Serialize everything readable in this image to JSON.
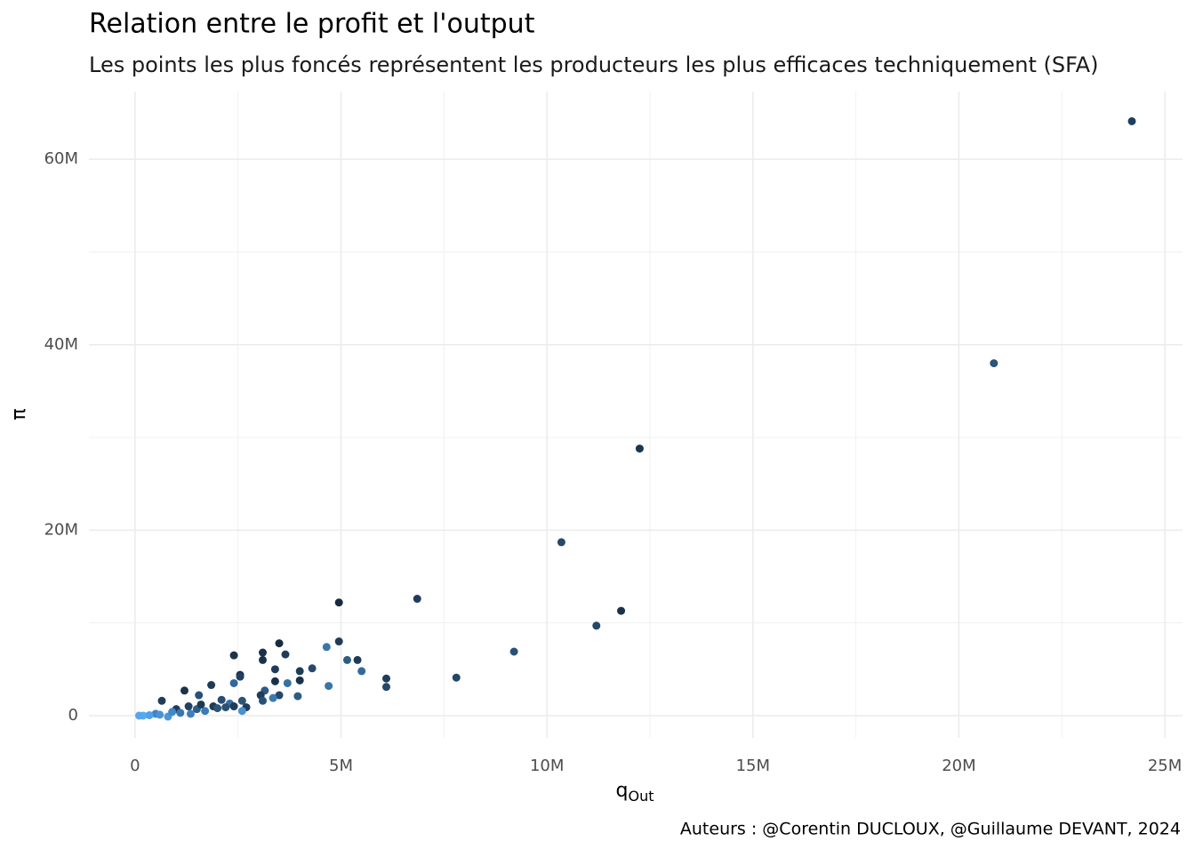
{
  "chart_data": {
    "type": "scatter",
    "title": "Relation entre le profit et l'output",
    "subtitle": "Les points les plus foncés représentent les producteurs les plus efficaces techniquement (SFA)",
    "x_label": "q",
    "x_label_sub": "Out",
    "y_label": "π",
    "caption": "Auteurs : @Corentin DUCLOUX, @Guillaume DEVANT, 2024",
    "xlim": [
      -1.12,
      25.43
    ],
    "ylim": [
      -2.4,
      67.3
    ],
    "xticks": [
      0,
      {
        "value": 5,
        "label": "5M"
      },
      {
        "value": 10,
        "label": "10M"
      },
      {
        "value": 15,
        "label": "15M"
      },
      {
        "value": 20,
        "label": "20M"
      },
      {
        "value": 25,
        "label": "25M"
      }
    ],
    "yticks": [
      0,
      {
        "value": 20,
        "label": "20M"
      },
      {
        "value": 40,
        "label": "40M"
      },
      {
        "value": 60,
        "label": "60M"
      }
    ],
    "grid": true,
    "x": [
      24.2,
      20.85,
      12.25,
      10.35,
      6.85,
      4.95,
      11.8,
      11.2,
      9.2,
      7.8,
      6.1,
      6.1,
      4.95,
      4.65,
      5.15,
      5.4,
      5.5,
      4.7,
      4.3,
      4.0,
      4.0,
      3.95,
      3.5,
      3.65,
      3.4,
      3.4,
      3.7,
      3.5,
      3.35,
      3.1,
      3.1,
      3.15,
      3.05,
      3.1,
      2.4,
      2.55,
      2.55,
      2.4,
      2.6,
      2.7,
      2.6,
      1.85,
      1.55,
      1.2,
      0.65,
      2.1,
      1.9,
      1.5,
      1.0,
      1.35,
      0.8,
      0.5,
      0.2,
      0.1,
      0.35,
      2.0,
      2.3,
      1.7,
      2.2,
      1.1,
      0.9,
      0.6,
      2.4,
      1.3,
      1.6
    ],
    "values": [
      64.1,
      38.0,
      28.8,
      18.7,
      12.6,
      12.2,
      11.3,
      9.7,
      6.9,
      4.1,
      4.0,
      3.1,
      8.0,
      7.4,
      6.0,
      6.0,
      4.8,
      3.2,
      5.1,
      4.8,
      3.8,
      2.1,
      7.8,
      6.6,
      5.0,
      3.7,
      3.5,
      2.2,
      1.9,
      6.8,
      6.0,
      2.7,
      2.2,
      1.6,
      6.5,
      4.4,
      4.2,
      3.5,
      1.6,
      0.9,
      0.5,
      3.3,
      2.2,
      2.7,
      1.6,
      1.7,
      1.0,
      0.7,
      0.7,
      0.2,
      -0.1,
      0.2,
      0.0,
      0.0,
      0.05,
      0.8,
      1.3,
      0.5,
      0.9,
      0.3,
      0.4,
      0.1,
      1.0,
      1.0,
      1.2
    ],
    "colors": [
      "#1f3f5c",
      "#2b5478",
      "#1c3550",
      "#24486a",
      "#1f3c5a",
      "#172b40",
      "#1a3148",
      "#244868",
      "#2a5173",
      "#23476a",
      "#1e3d5a",
      "#244867",
      "#1f3d5a",
      "#3a77a8",
      "#2e5d85",
      "#1e3b56",
      "#34699a",
      "#3a75a6",
      "#26496b",
      "#1e3b58",
      "#1a3149",
      "#2e5c84",
      "#182c40",
      "#1f3c58",
      "#1f3c5a",
      "#1a3149",
      "#3571a3",
      "#24486a",
      "#3b7ab0",
      "#1a3149",
      "#1a3149",
      "#2d5b82",
      "#1f3d5a",
      "#275079",
      "#1b324a",
      "#1a3149",
      "#20405e",
      "#336699",
      "#2b5478",
      "#1f3d5a",
      "#4a90d0",
      "#1e3b58",
      "#285078",
      "#1b334b",
      "#1f3d5a",
      "#264d72",
      "#1e3b58",
      "#2e5d85",
      "#1f3c5a",
      "#3e80bd",
      "#4b96d8",
      "#3f83c3",
      "#5aaaf0",
      "#56a6ee",
      "#4fa0e8",
      "#2b5478",
      "#3470a5",
      "#3c7cb8",
      "#2a5173",
      "#3a77b2",
      "#4288c8",
      "#4a92d8",
      "#1f3d5a",
      "#214363",
      "#1d3a55"
    ]
  }
}
